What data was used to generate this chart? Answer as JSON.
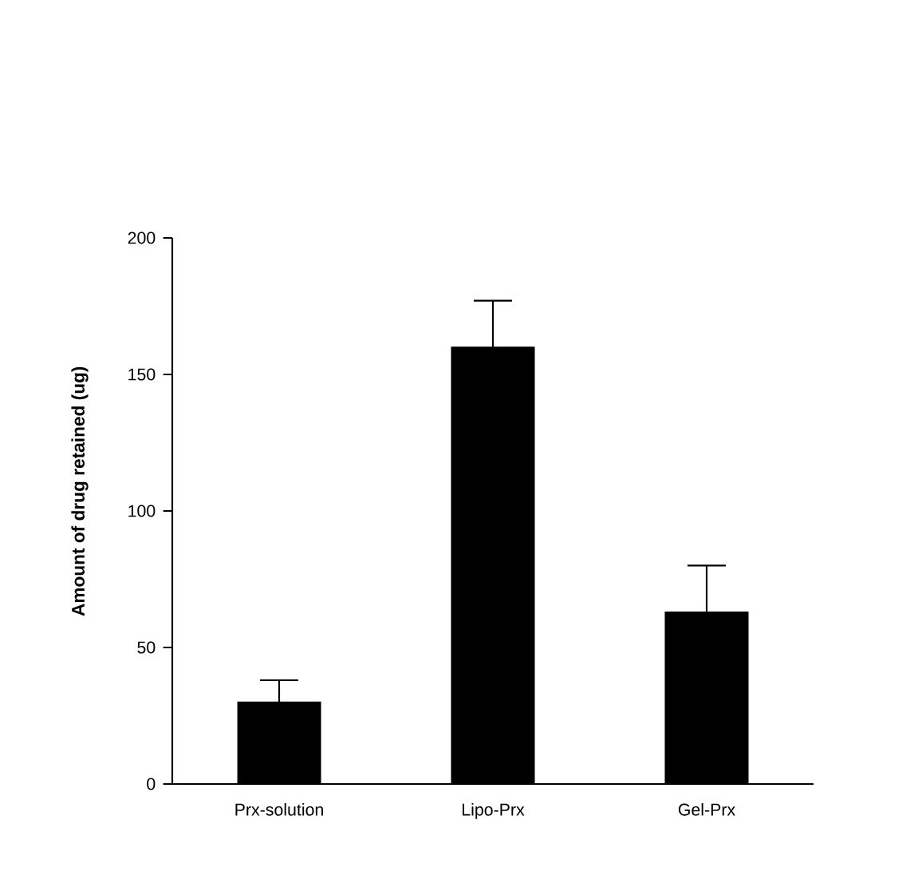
{
  "chart_data": {
    "type": "bar",
    "ylabel": "Amount of drug retained (ug)",
    "categories": [
      "Prx-solution",
      "Lipo-Prx",
      "Gel-Prx"
    ],
    "values": [
      30,
      160,
      63
    ],
    "errors": [
      8,
      17,
      17
    ],
    "color": "#000000",
    "ylim": [
      0,
      200
    ],
    "yticks": [
      0,
      50,
      100,
      150,
      200
    ],
    "grid": false
  }
}
